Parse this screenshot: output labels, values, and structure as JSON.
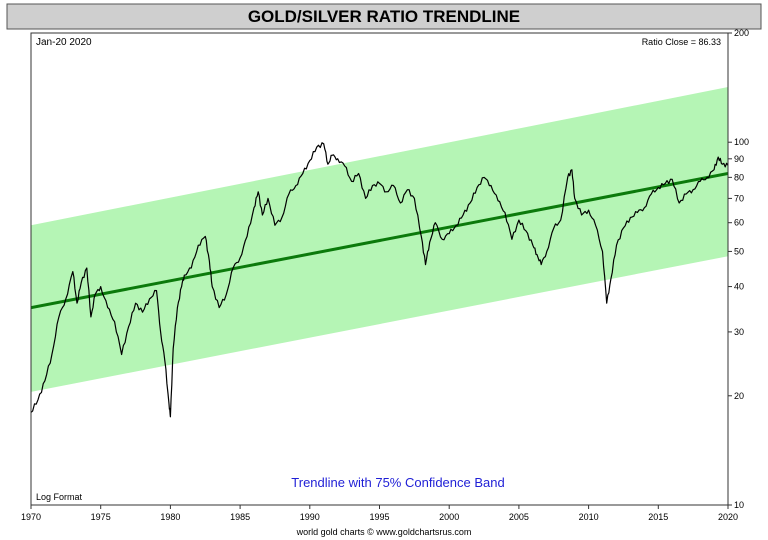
{
  "chart_data": {
    "type": "line",
    "title": "GOLD/SILVER RATIO TRENDLINE",
    "date_label": "Jan-20  2020",
    "ratio_close_label": "Ratio Close = 86.33",
    "scale_note": "Log Format",
    "annotation": "Trendline with 75% Confidence Band",
    "footer": "world gold charts © www.goldchartsrus.com",
    "y_scale": "log",
    "ylim": [
      10,
      200
    ],
    "xlim": [
      1970,
      2020
    ],
    "x_ticks": [
      "1970",
      "1975",
      "1980",
      "1985",
      "1990",
      "1995",
      "2000",
      "2005",
      "2010",
      "2015",
      "2020"
    ],
    "y_ticks": [
      "10",
      "20",
      "30",
      "40",
      "50",
      "60",
      "70",
      "80",
      "90",
      "100",
      "200"
    ],
    "trendline": {
      "x": [
        1970,
        2020
      ],
      "y": [
        35,
        82
      ]
    },
    "band_upper": {
      "x": [
        1970,
        2020
      ],
      "y": [
        59,
        142
      ]
    },
    "band_lower": {
      "x": [
        1970,
        2020
      ],
      "y": [
        20.5,
        48.5
      ]
    },
    "series": [
      {
        "x": [
          1970.0,
          1970.5,
          1971.0,
          1971.5,
          1972.0,
          1972.5,
          1973.0,
          1973.3,
          1973.6,
          1974.0,
          1974.3,
          1974.6,
          1975.0,
          1975.5,
          1976.0,
          1976.5,
          1977.0,
          1977.5,
          1978.0,
          1978.5,
          1979.0,
          1979.3,
          1979.6,
          1979.9,
          1980.0,
          1980.2,
          1980.5,
          1980.8,
          1981.0,
          1981.5,
          1982.0,
          1982.5,
          1982.8,
          1983.0,
          1983.5,
          1984.0,
          1984.5,
          1985.0,
          1985.5,
          1986.0,
          1986.3,
          1986.6,
          1987.0,
          1987.5,
          1988.0,
          1988.5,
          1989.0,
          1989.5,
          1990.0,
          1990.5,
          1991.0,
          1991.3,
          1991.6,
          1992.0,
          1992.5,
          1993.0,
          1993.5,
          1994.0,
          1994.5,
          1995.0,
          1995.5,
          1996.0,
          1996.5,
          1997.0,
          1997.5,
          1998.0,
          1998.3,
          1998.6,
          1999.0,
          1999.5,
          2000.0,
          2000.5,
          2001.0,
          2001.5,
          2002.0,
          2002.5,
          2003.0,
          2003.5,
          2004.0,
          2004.5,
          2005.0,
          2005.5,
          2006.0,
          2006.3,
          2006.6,
          2007.0,
          2007.5,
          2008.0,
          2008.5,
          2008.8,
          2009.0,
          2009.5,
          2010.0,
          2010.5,
          2011.0,
          2011.3,
          2011.6,
          2012.0,
          2012.5,
          2013.0,
          2013.5,
          2014.0,
          2014.5,
          2015.0,
          2015.5,
          2016.0,
          2016.5,
          2017.0,
          2017.5,
          2018.0,
          2018.5,
          2019.0,
          2019.3,
          2019.6,
          2020.0
        ],
        "y": [
          18,
          19.5,
          22,
          26,
          33,
          37,
          44,
          36,
          41,
          45,
          33,
          38,
          40,
          35,
          32,
          26,
          31,
          36,
          34,
          37,
          39,
          30,
          25,
          19,
          17.5,
          27,
          35,
          40,
          43,
          45,
          52,
          55,
          47,
          40,
          35,
          38,
          45,
          48,
          55,
          66,
          73,
          63,
          70,
          59,
          62,
          72,
          76,
          82,
          89,
          97,
          99,
          87,
          92,
          90,
          86,
          78,
          82,
          70,
          76,
          77,
          73,
          76,
          68,
          74,
          70,
          55,
          46,
          53,
          60,
          54,
          56,
          59,
          63,
          68,
          75,
          80,
          76,
          69,
          64,
          54,
          61,
          57,
          52,
          49,
          46,
          50,
          58,
          61,
          80,
          84,
          70,
          63,
          65,
          59,
          50,
          36,
          42,
          52,
          58,
          62,
          64,
          66,
          72,
          75,
          77,
          79,
          68,
          72,
          74,
          78,
          80,
          84,
          91,
          87,
          86.33
        ]
      }
    ]
  }
}
